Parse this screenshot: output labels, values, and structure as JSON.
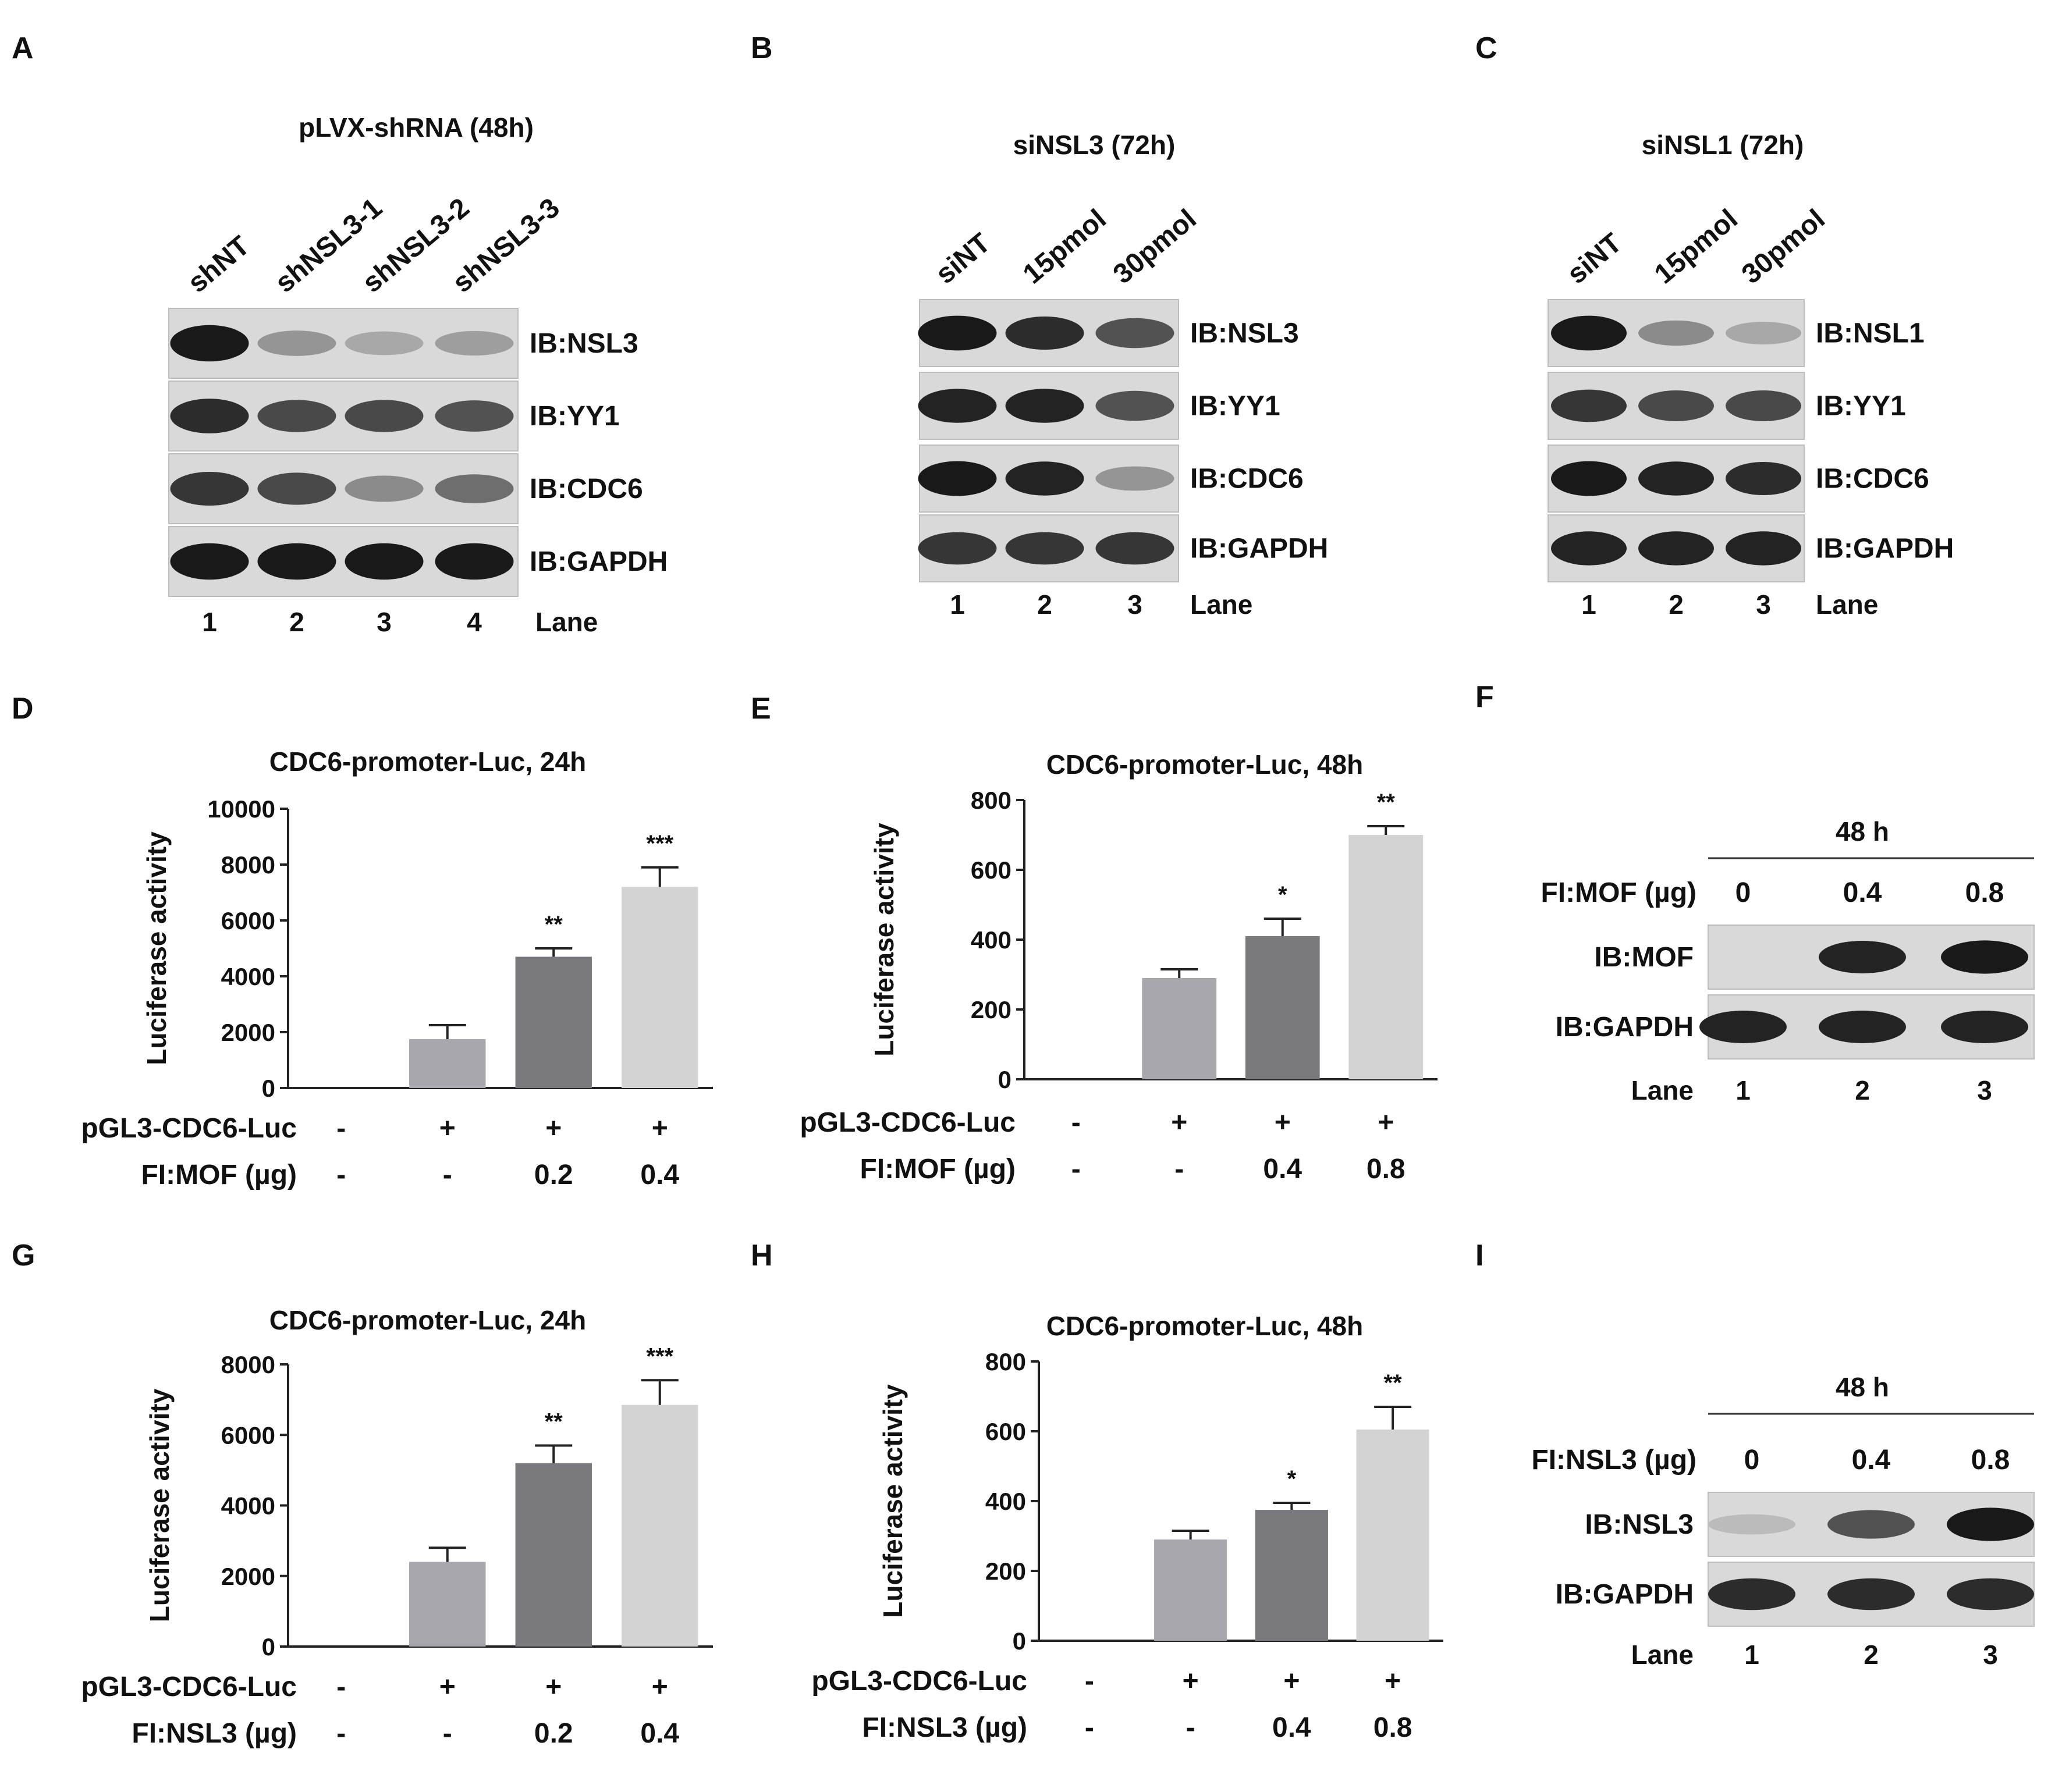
{
  "figure": {
    "panelA": {
      "letter": "A",
      "title": "pLVX-shRNA (48h)",
      "lanes": [
        "shNT",
        "shNSL3-1",
        "shNSL3-2",
        "shNSL3-3"
      ],
      "blots": [
        "IB:NSL3",
        "IB:YY1",
        "IB:CDC6",
        "IB:GAPDH"
      ],
      "band_intensity": [
        [
          1.0,
          0.35,
          0.25,
          0.3
        ],
        [
          0.9,
          0.75,
          0.75,
          0.7
        ],
        [
          0.85,
          0.75,
          0.4,
          0.55
        ],
        [
          1.0,
          1.0,
          1.0,
          1.0
        ]
      ],
      "lane_numbers": [
        "1",
        "2",
        "3",
        "4"
      ],
      "lane_label": "Lane"
    },
    "panelB": {
      "letter": "B",
      "title": "siNSL3 (72h)",
      "lanes": [
        "siNT",
        "15pmol",
        "30pmol"
      ],
      "blots": [
        "IB:NSL3",
        "IB:YY1",
        "IB:CDC6",
        "IB:GAPDH"
      ],
      "band_intensity": [
        [
          1.0,
          0.9,
          0.7
        ],
        [
          0.95,
          0.95,
          0.7
        ],
        [
          1.0,
          0.95,
          0.35
        ],
        [
          0.85,
          0.85,
          0.85
        ]
      ],
      "lane_numbers": [
        "1",
        "2",
        "3"
      ],
      "lane_label": "Lane"
    },
    "panelC": {
      "letter": "C",
      "title": "siNSL1 (72h)",
      "lanes": [
        "siNT",
        "15pmol",
        "30pmol"
      ],
      "blots": [
        "IB:NSL1",
        "IB:YY1",
        "IB:CDC6",
        "IB:GAPDH"
      ],
      "band_intensity": [
        [
          1.0,
          0.4,
          0.25
        ],
        [
          0.85,
          0.75,
          0.75
        ],
        [
          1.0,
          0.95,
          0.9
        ],
        [
          0.95,
          0.95,
          0.95
        ]
      ],
      "lane_numbers": [
        "1",
        "2",
        "3"
      ],
      "lane_label": "Lane"
    },
    "panelF": {
      "letter": "F",
      "time_label": "48 h",
      "row_label": "FI:MOF (µg)",
      "doses": [
        "0",
        "0.4",
        "0.8"
      ],
      "blots": [
        "IB:MOF",
        "IB:GAPDH"
      ],
      "band_intensity": [
        [
          0.0,
          0.95,
          1.0
        ],
        [
          0.95,
          0.95,
          0.95
        ]
      ],
      "lane_numbers": [
        "1",
        "2",
        "3"
      ],
      "lane_label": "Lane"
    },
    "panelI": {
      "letter": "I",
      "time_label": "48 h",
      "row_label": "FI:NSL3 (µg)",
      "doses": [
        "0",
        "0.4",
        "0.8"
      ],
      "blots": [
        "IB:NSL3",
        "IB:GAPDH"
      ],
      "band_intensity": [
        [
          0.15,
          0.7,
          1.0
        ],
        [
          0.9,
          0.9,
          0.9
        ]
      ],
      "lane_numbers": [
        "1",
        "2",
        "3"
      ],
      "lane_label": "Lane"
    },
    "panelD": {
      "letter": "D",
      "row1_label": "pGL3-CDC6-Luc",
      "row1_values": [
        "-",
        "+",
        "+",
        "+"
      ],
      "row2_label": "FI:MOF (µg)",
      "row2_values": [
        "-",
        "-",
        "0.2",
        "0.4"
      ]
    },
    "panelE": {
      "letter": "E",
      "row1_label": "pGL3-CDC6-Luc",
      "row1_values": [
        "-",
        "+",
        "+",
        "+"
      ],
      "row2_label": "FI:MOF (µg)",
      "row2_values": [
        "-",
        "-",
        "0.4",
        "0.8"
      ]
    },
    "panelG": {
      "letter": "G",
      "row1_label": "pGL3-CDC6-Luc",
      "row1_values": [
        "-",
        "+",
        "+",
        "+"
      ],
      "row2_label": "FI:NSL3 (µg)",
      "row2_values": [
        "-",
        "-",
        "0.2",
        "0.4"
      ]
    },
    "panelH": {
      "letter": "H",
      "row1_label": "pGL3-CDC6-Luc",
      "row1_values": [
        "-",
        "+",
        "+",
        "+"
      ],
      "row2_label": "FI:NSL3 (µg)",
      "row2_values": [
        "-",
        "-",
        "0.4",
        "0.8"
      ]
    }
  },
  "chart_data": [
    {
      "panel": "D",
      "type": "bar",
      "title": "CDC6-promoter-Luc, 24h",
      "xlabel": "",
      "ylabel": "Luciferase activity",
      "ylim": [
        0,
        10000
      ],
      "yticks": [
        "0",
        "2000",
        "4000",
        "6000",
        "8000",
        "10000"
      ],
      "values": [
        0,
        1750,
        4700,
        7200
      ],
      "errors": [
        0,
        500,
        300,
        700
      ],
      "significance": [
        "",
        "",
        "**",
        "***"
      ],
      "bar_colors": [
        "#ffffff",
        "#a7a7ad",
        "#7a7a7e",
        "#d3d3d3"
      ]
    },
    {
      "panel": "E",
      "type": "bar",
      "title": "CDC6-promoter-Luc, 48h",
      "xlabel": "",
      "ylabel": "Luciferase activity",
      "ylim": [
        0,
        800
      ],
      "yticks": [
        "0",
        "200",
        "400",
        "600",
        "800"
      ],
      "values": [
        0,
        290,
        410,
        700
      ],
      "errors": [
        0,
        25,
        50,
        25
      ],
      "significance": [
        "",
        "",
        "*",
        "**"
      ],
      "bar_colors": [
        "#ffffff",
        "#a7a7ad",
        "#7a7a7e",
        "#d3d3d3"
      ]
    },
    {
      "panel": "G",
      "type": "bar",
      "title": "CDC6-promoter-Luc, 24h",
      "xlabel": "",
      "ylabel": "Luciferase activity",
      "ylim": [
        0,
        8000
      ],
      "yticks": [
        "0",
        "2000",
        "4000",
        "6000",
        "8000"
      ],
      "values": [
        0,
        2400,
        5200,
        6850
      ],
      "errors": [
        0,
        400,
        500,
        700
      ],
      "significance": [
        "",
        "",
        "**",
        "***"
      ],
      "bar_colors": [
        "#ffffff",
        "#a7a7ad",
        "#7a7a7e",
        "#d3d3d3"
      ]
    },
    {
      "panel": "H",
      "type": "bar",
      "title": "CDC6-promoter-Luc, 48h",
      "xlabel": "",
      "ylabel": "Luciferase activity",
      "ylim": [
        0,
        800
      ],
      "yticks": [
        "0",
        "200",
        "400",
        "600",
        "800"
      ],
      "values": [
        0,
        290,
        375,
        605
      ],
      "errors": [
        0,
        25,
        20,
        65
      ],
      "significance": [
        "",
        "",
        "*",
        "**"
      ],
      "bar_colors": [
        "#ffffff",
        "#a7a7ad",
        "#7a7a7e",
        "#d3d3d3"
      ]
    }
  ]
}
